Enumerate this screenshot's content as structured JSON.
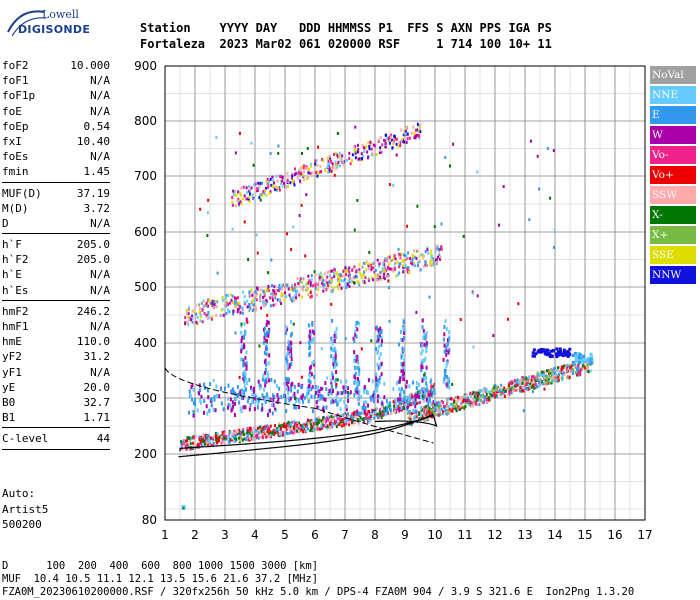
{
  "logo": {
    "top": "Lowell",
    "bottom": "DIGISONDE"
  },
  "header": {
    "line1": "Station    YYYY DAY   DDD HHMMSS P1  FFS S AXN PPS IGA PS",
    "line2": "Fortaleza  2023 Mar02 061 020000 RSF     1 714 100 10+ 11"
  },
  "params": [
    {
      "label": "foF2",
      "value": "10.000"
    },
    {
      "label": "foF1",
      "value": "N/A"
    },
    {
      "label": "foF1p",
      "value": "N/A"
    },
    {
      "label": "foE",
      "value": "N/A"
    },
    {
      "label": "foEp",
      "value": "0.54"
    },
    {
      "label": "fxI",
      "value": "10.40"
    },
    {
      "label": "foEs",
      "value": "N/A"
    },
    {
      "label": "fmin",
      "value": "1.45",
      "sep": true
    },
    {
      "label": "MUF(D)",
      "value": "37.19"
    },
    {
      "label": "M(D)",
      "value": "3.72"
    },
    {
      "label": "D",
      "value": "N/A",
      "sep": true
    },
    {
      "label": "h`F",
      "value": "205.0"
    },
    {
      "label": "h`F2",
      "value": "205.0"
    },
    {
      "label": "h`E",
      "value": "N/A"
    },
    {
      "label": "h`Es",
      "value": "N/A",
      "sep": true
    },
    {
      "label": "hmF2",
      "value": "246.2"
    },
    {
      "label": "hmF1",
      "value": "N/A"
    },
    {
      "label": "hmE",
      "value": "110.0"
    },
    {
      "label": "yF2",
      "value": "31.2"
    },
    {
      "label": "yF1",
      "value": "N/A"
    },
    {
      "label": "yE",
      "value": "20.0"
    },
    {
      "label": "B0",
      "value": "32.7"
    },
    {
      "label": "B1",
      "value": "1.71",
      "sep": true
    },
    {
      "label": "C-level",
      "value": "44",
      "sep": true
    }
  ],
  "auto": {
    "line1": "Auto:",
    "line2": "Artist5",
    "line3": "500200"
  },
  "axes": {
    "x_ticks": [
      "1",
      "2",
      "3",
      "4",
      "5",
      "6",
      "7",
      "8",
      "9",
      "10",
      "11",
      "12",
      "13",
      "14",
      "15",
      "16",
      "17"
    ],
    "y_ticks": [
      "80",
      "200",
      "300",
      "400",
      "500",
      "600",
      "700",
      "800",
      "900"
    ],
    "x_range": [
      1,
      17
    ],
    "y_range": [
      80,
      900
    ]
  },
  "legend": [
    {
      "label": "NoVal",
      "color": "#a0a0a0"
    },
    {
      "label": "NNE",
      "color": "#66ccff"
    },
    {
      "label": "E",
      "color": "#3399ee"
    },
    {
      "label": "W",
      "color": "#aa00aa"
    },
    {
      "label": "Vo-",
      "color": "#ee2288"
    },
    {
      "label": "Vo+",
      "color": "#ee0000"
    },
    {
      "label": "SSW",
      "color": "#ffaaaa"
    },
    {
      "label": "X-",
      "color": "#007700"
    },
    {
      "label": "X+",
      "color": "#77bb44"
    },
    {
      "label": "SSE",
      "color": "#dddd00"
    },
    {
      "label": "NNW",
      "color": "#1111dd"
    }
  ],
  "footer": {
    "line1": "D      100  200  400  600  800 1000 1500 3000 [km]",
    "line2": "MUF  10.4 10.5 11.1 12.1 13.5 15.6 21.6 37.2 [MHz]",
    "line3": "FZA0M_20230610200000.RSF / 320fx256h 50 kHz 5.0 km / DPS-4 FZA0M 904 / 3.9 S 321.6 E  Ion2Png 1.3.20"
  }
}
